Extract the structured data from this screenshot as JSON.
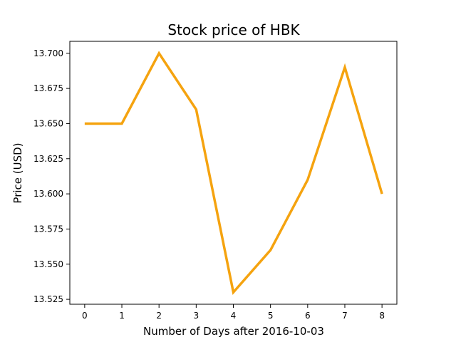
{
  "chart_data": {
    "type": "line",
    "title": "Stock price of HBK",
    "xlabel": "Number of Days after 2016-10-03",
    "ylabel": "Price (USD)",
    "x": [
      0,
      1,
      2,
      3,
      4,
      5,
      6,
      7,
      8
    ],
    "series": [
      {
        "values": [
          13.65,
          13.65,
          13.7,
          13.66,
          13.53,
          13.56,
          13.61,
          13.69,
          13.6
        ],
        "color": "#f5a30f"
      }
    ],
    "xticks": [
      "0",
      "1",
      "2",
      "3",
      "4",
      "5",
      "6",
      "7",
      "8"
    ],
    "yticks": [
      "13.525",
      "13.550",
      "13.575",
      "13.600",
      "13.625",
      "13.650",
      "13.675",
      "13.700"
    ],
    "xlim": [
      -0.4,
      8.4
    ],
    "ylim": [
      13.5215,
      13.7085
    ],
    "grid": false,
    "legend": "none"
  }
}
